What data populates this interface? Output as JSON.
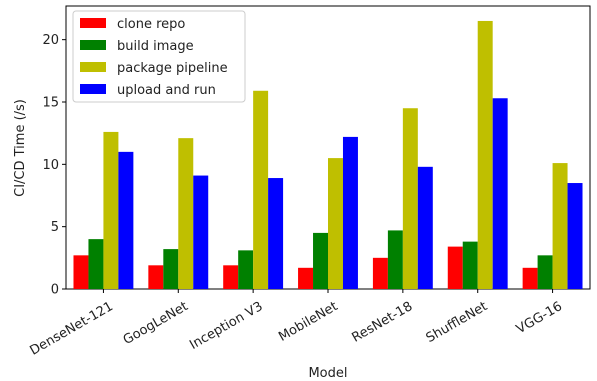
{
  "chart_data": {
    "type": "bar",
    "title": "",
    "xlabel": "Model",
    "ylabel": "CI/CD Time (/s)",
    "ylim": [
      0,
      22.7
    ],
    "yticks": [
      0,
      5,
      10,
      15,
      20
    ],
    "categories": [
      "DenseNet-121",
      "GoogLeNet",
      "Inception V3",
      "MobileNet",
      "ResNet-18",
      "ShuffleNet",
      "VGG-16"
    ],
    "series": [
      {
        "name": "clone repo",
        "color": "#ff0000",
        "values": [
          2.7,
          1.9,
          1.9,
          1.7,
          2.5,
          3.4,
          1.7
        ]
      },
      {
        "name": "build image",
        "color": "#008000",
        "values": [
          4.0,
          3.2,
          3.1,
          4.5,
          4.7,
          3.8,
          2.7
        ]
      },
      {
        "name": "package pipeline",
        "color": "#bfbf00",
        "values": [
          12.6,
          12.1,
          15.9,
          10.5,
          14.5,
          21.5,
          10.1
        ]
      },
      {
        "name": "upload and run",
        "color": "#0000ff",
        "values": [
          11.0,
          9.1,
          8.9,
          12.2,
          9.8,
          15.3,
          8.5
        ]
      }
    ],
    "grid": false,
    "legend_position": "top-left"
  }
}
